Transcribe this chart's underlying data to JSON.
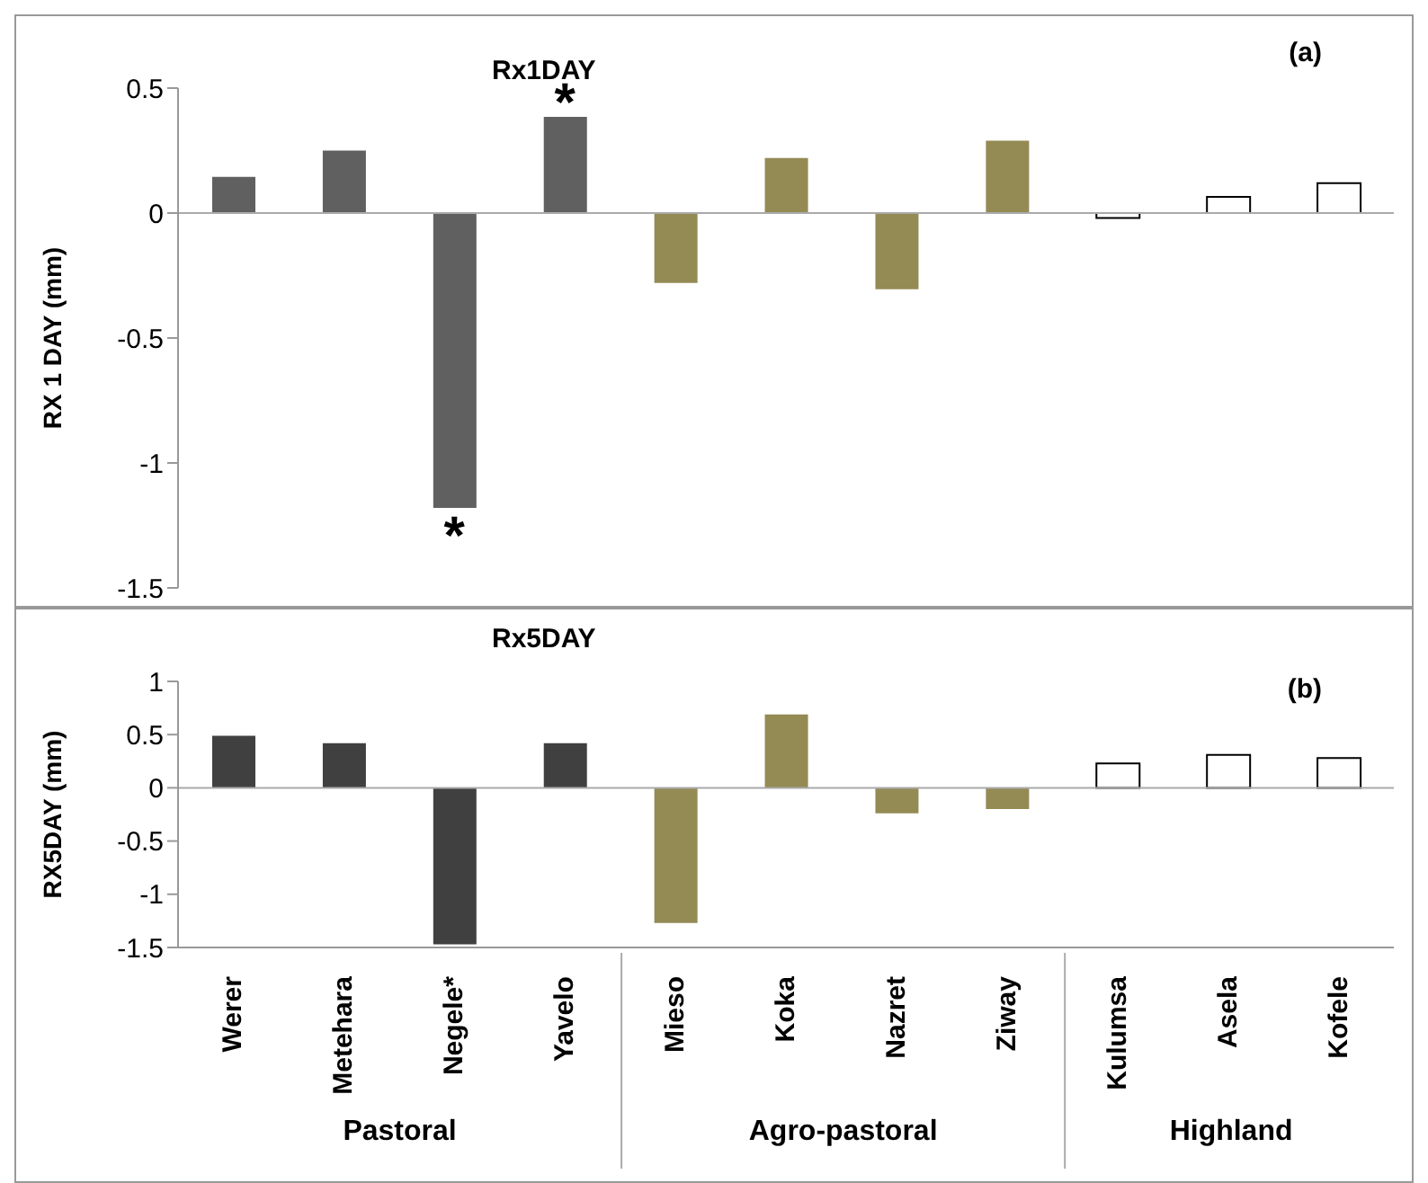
{
  "chart_data": [
    {
      "type": "bar",
      "title": "Rx1DAY",
      "ylabel": "RX 1 DAY (mm)",
      "categories": [
        "Werer",
        "Metehara",
        "Negele*",
        "Yavelo",
        "Mieso",
        "Koka",
        "Nazret",
        "Ziway",
        "Kulumsa",
        "Asela",
        "Kofele"
      ],
      "values": [
        0.145,
        0.25,
        -1.18,
        0.385,
        -0.28,
        0.22,
        -0.305,
        0.29,
        -0.02,
        0.065,
        0.12
      ],
      "colors": [
        "#606060",
        "#606060",
        "#606060",
        "#606060",
        "#948a54",
        "#948a54",
        "#948a54",
        "#948a54",
        "#ffffff",
        "#ffffff",
        "#ffffff"
      ],
      "ylim": [
        -1.5,
        0.5
      ],
      "yticks": [
        -1.5,
        -1,
        -0.5,
        0,
        0.5
      ],
      "tick_labels": "y",
      "grid": false,
      "legend": false,
      "ref_lines": [
        {
          "axis": "y",
          "value": 0
        }
      ],
      "annotations": [
        "(a)",
        {
          "text": "*",
          "x": "Negele*",
          "y": -1.18
        },
        {
          "text": "*",
          "x": "Yavelo",
          "y": 0.385
        }
      ]
    },
    {
      "type": "bar",
      "title": "Rx5DAY",
      "ylabel": "RX5DAY (mm)",
      "categories": [
        "Werer",
        "Metehara",
        "Negele*",
        "Yavelo",
        "Mieso",
        "Koka",
        "Nazret",
        "Ziway",
        "Kulumsa",
        "Asela",
        "Kofele"
      ],
      "values": [
        0.49,
        0.42,
        -1.47,
        0.42,
        -1.27,
        0.69,
        -0.24,
        -0.2,
        0.23,
        0.31,
        0.28
      ],
      "colors": [
        "#404040",
        "#404040",
        "#404040",
        "#404040",
        "#948a54",
        "#948a54",
        "#948a54",
        "#948a54",
        "#ffffff",
        "#ffffff",
        "#ffffff"
      ],
      "ylim": [
        -1.5,
        1
      ],
      "yticks": [
        -1.5,
        -1,
        -0.5,
        0,
        0.5,
        1
      ],
      "grid": false,
      "legend": false,
      "ref_lines": [
        {
          "axis": "y",
          "value": 0
        }
      ],
      "annotations": [
        "(b)",
        "Pastoral",
        "Agro-pastoral",
        "Highland"
      ]
    }
  ]
}
